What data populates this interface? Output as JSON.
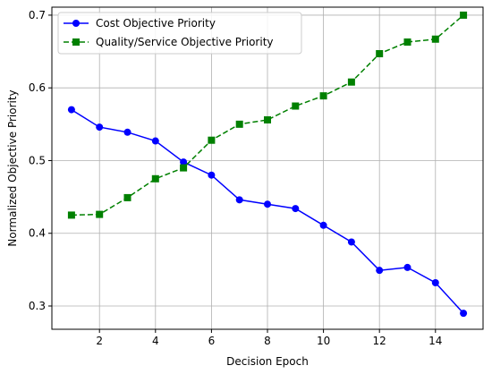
{
  "chart_data": {
    "type": "line",
    "title": "",
    "xlabel": "Decision Epoch",
    "ylabel": "Normalized Objective Priority",
    "xlim": [
      0.3,
      15.7
    ],
    "ylim": [
      0.268,
      0.711
    ],
    "xticks": [
      2,
      4,
      6,
      8,
      10,
      12,
      14
    ],
    "yticks": [
      0.3,
      0.4,
      0.5,
      0.6,
      0.7
    ],
    "grid": true,
    "legend_position": "top-left",
    "x": [
      1,
      2,
      3,
      4,
      5,
      6,
      7,
      8,
      9,
      10,
      11,
      12,
      13,
      14,
      15
    ],
    "series": [
      {
        "name": "Cost Objective Priority",
        "color": "#0000ff",
        "marker": "circle",
        "line_style": "solid",
        "values": [
          0.57,
          0.546,
          0.539,
          0.527,
          0.498,
          0.48,
          0.446,
          0.44,
          0.434,
          0.411,
          0.388,
          0.349,
          0.353,
          0.332,
          0.29
        ]
      },
      {
        "name": "Quality/Service Objective Priority",
        "color": "#008000",
        "marker": "square",
        "line_style": "dashed",
        "values": [
          0.425,
          0.426,
          0.449,
          0.475,
          0.49,
          0.528,
          0.55,
          0.556,
          0.575,
          0.589,
          0.608,
          0.647,
          0.663,
          0.667,
          0.7
        ]
      }
    ]
  }
}
